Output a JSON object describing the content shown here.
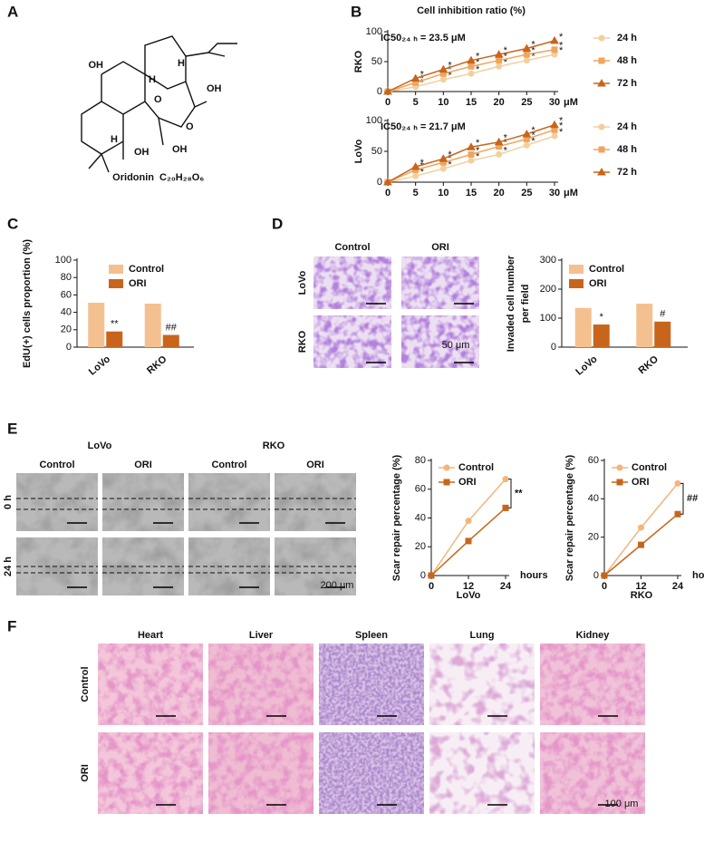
{
  "panel_labels": [
    "A",
    "B",
    "C",
    "D",
    "E",
    "F"
  ],
  "molecule": {
    "name": "Oridonin",
    "formula": "C₂₀H₂₈O₆",
    "atoms": [
      "OH",
      "H",
      "H",
      "O",
      "OH",
      "O",
      "H",
      "OH",
      "OH"
    ]
  },
  "panel_d": {
    "columns": [
      "Control",
      "ORI"
    ],
    "rows": [
      "LoVo",
      "RKO"
    ],
    "scale_bar": "50 μm"
  },
  "panel_e": {
    "groups": [
      "LoVo",
      "RKO"
    ],
    "columns": [
      "Control",
      "ORI",
      "Control",
      "ORI"
    ],
    "rows": [
      "0 h",
      "24 h"
    ],
    "scale_bar": "200 μm"
  },
  "panel_f": {
    "columns": [
      "Heart",
      "Liver",
      "Spleen",
      "Lung",
      "Kidney"
    ],
    "rows": [
      "Control",
      "ORI"
    ],
    "scale_bar": "100 μm"
  },
  "chart_data": [
    {
      "type": "line",
      "title": "Cell inhibition ratio (%)",
      "ylabel": "RKO",
      "annotation": "IC50₂₄ ₕ = 23.5 μM",
      "xlabel": "μM",
      "x": [
        0,
        5,
        10,
        15,
        20,
        25,
        30
      ],
      "xlim": [
        0,
        30
      ],
      "xticks": [
        0,
        5,
        10,
        15,
        20,
        25,
        30
      ],
      "ylim": [
        0,
        100
      ],
      "yticks": [
        0,
        50,
        100
      ],
      "legend": "right",
      "series": [
        {
          "name": "24 h",
          "color": "#f3cf9c",
          "marker": "circle",
          "values": [
            0,
            8,
            20,
            30,
            42,
            52,
            62
          ],
          "annotations": [
            null,
            "*",
            "*",
            "*",
            "*",
            "*",
            "*"
          ]
        },
        {
          "name": "48 h",
          "color": "#f0a45c",
          "marker": "square",
          "values": [
            0,
            15,
            30,
            42,
            52,
            62,
            70
          ],
          "annotations": [
            null,
            "*",
            "*",
            "*",
            "*",
            "*",
            "*"
          ]
        },
        {
          "name": "72 h",
          "color": "#c8651b",
          "marker": "triangle",
          "values": [
            0,
            22,
            37,
            52,
            62,
            72,
            85
          ],
          "annotations": [
            null,
            "*",
            "*",
            "*",
            "*",
            "*",
            "*"
          ]
        }
      ]
    },
    {
      "type": "line",
      "ylabel": "LoVo",
      "annotation": "IC50₂₄ ₕ = 21.7 μM",
      "xlabel": "μM",
      "x": [
        0,
        5,
        10,
        15,
        20,
        25,
        30
      ],
      "xlim": [
        0,
        30
      ],
      "xticks": [
        0,
        5,
        10,
        15,
        20,
        25,
        30
      ],
      "ylim": [
        0,
        100
      ],
      "yticks": [
        0,
        50,
        100
      ],
      "legend": "right",
      "series": [
        {
          "name": "24 h",
          "color": "#f3cf9c",
          "marker": "circle",
          "values": [
            0,
            10,
            22,
            35,
            45,
            60,
            75
          ],
          "annotations": [
            null,
            "*",
            "*",
            "*",
            "*",
            "*",
            "*"
          ]
        },
        {
          "name": "48 h",
          "color": "#f0a45c",
          "marker": "square",
          "values": [
            0,
            20,
            32,
            45,
            58,
            70,
            85
          ],
          "annotations": [
            null,
            "*",
            "*",
            "*",
            "*",
            "*",
            "*"
          ]
        },
        {
          "name": "72 h",
          "color": "#c8651b",
          "marker": "triangle",
          "values": [
            0,
            25,
            38,
            57,
            65,
            78,
            93
          ],
          "annotations": [
            null,
            "*",
            "*",
            "*",
            "*",
            "*",
            "*"
          ]
        }
      ]
    },
    {
      "type": "bar",
      "ylabel": "EdU(+) cells proportion (%)",
      "categories": [
        "LoVo",
        "RKO"
      ],
      "ylim": [
        0,
        100
      ],
      "yticks": [
        0,
        20,
        40,
        60,
        80,
        100
      ],
      "legend": "upper left",
      "series": [
        {
          "name": "Control",
          "color": "#f5c08f",
          "values": [
            51,
            50
          ]
        },
        {
          "name": "ORI",
          "color": "#c8651b",
          "values": [
            18,
            14
          ],
          "annotations": [
            "**",
            "##"
          ]
        }
      ]
    },
    {
      "type": "bar",
      "ylabel": [
        "Invaded cell number",
        "per field"
      ],
      "categories": [
        "LoVo",
        "RKO"
      ],
      "ylim": [
        0,
        300
      ],
      "yticks": [
        0,
        100,
        200,
        300
      ],
      "legend": "upper left",
      "series": [
        {
          "name": "Control",
          "color": "#f5c08f",
          "values": [
            135,
            150
          ]
        },
        {
          "name": "ORI",
          "color": "#c8651b",
          "values": [
            78,
            88
          ],
          "annotations": [
            "*",
            "#"
          ]
        }
      ]
    },
    {
      "type": "line",
      "title": "LoVo",
      "ylabel": "Scar repair percentage (%)",
      "xlabel": "hours",
      "x": [
        0,
        12,
        24
      ],
      "xlim": [
        0,
        24
      ],
      "xticks": [
        0,
        12,
        24
      ],
      "ylim": [
        0,
        80
      ],
      "yticks": [
        0,
        20,
        40,
        60,
        80
      ],
      "legend": "upper left",
      "comparison_label": "**",
      "series": [
        {
          "name": "Control",
          "color": "#f5b47a",
          "marker": "circle",
          "values": [
            0,
            38,
            67
          ]
        },
        {
          "name": "ORI",
          "color": "#c8651b",
          "marker": "square",
          "values": [
            0,
            24,
            47
          ]
        }
      ]
    },
    {
      "type": "line",
      "title": "RKO",
      "ylabel": "Scar repair percentage (%)",
      "xlabel": "hours",
      "x": [
        0,
        12,
        24
      ],
      "xlim": [
        0,
        24
      ],
      "xticks": [
        0,
        12,
        24
      ],
      "ylim": [
        0,
        60
      ],
      "yticks": [
        0,
        20,
        40,
        60
      ],
      "legend": "upper left",
      "comparison_label": "##",
      "series": [
        {
          "name": "Control",
          "color": "#f5b47a",
          "marker": "circle",
          "values": [
            0,
            25,
            48
          ]
        },
        {
          "name": "ORI",
          "color": "#c8651b",
          "marker": "square",
          "values": [
            0,
            16,
            32
          ]
        }
      ]
    }
  ]
}
